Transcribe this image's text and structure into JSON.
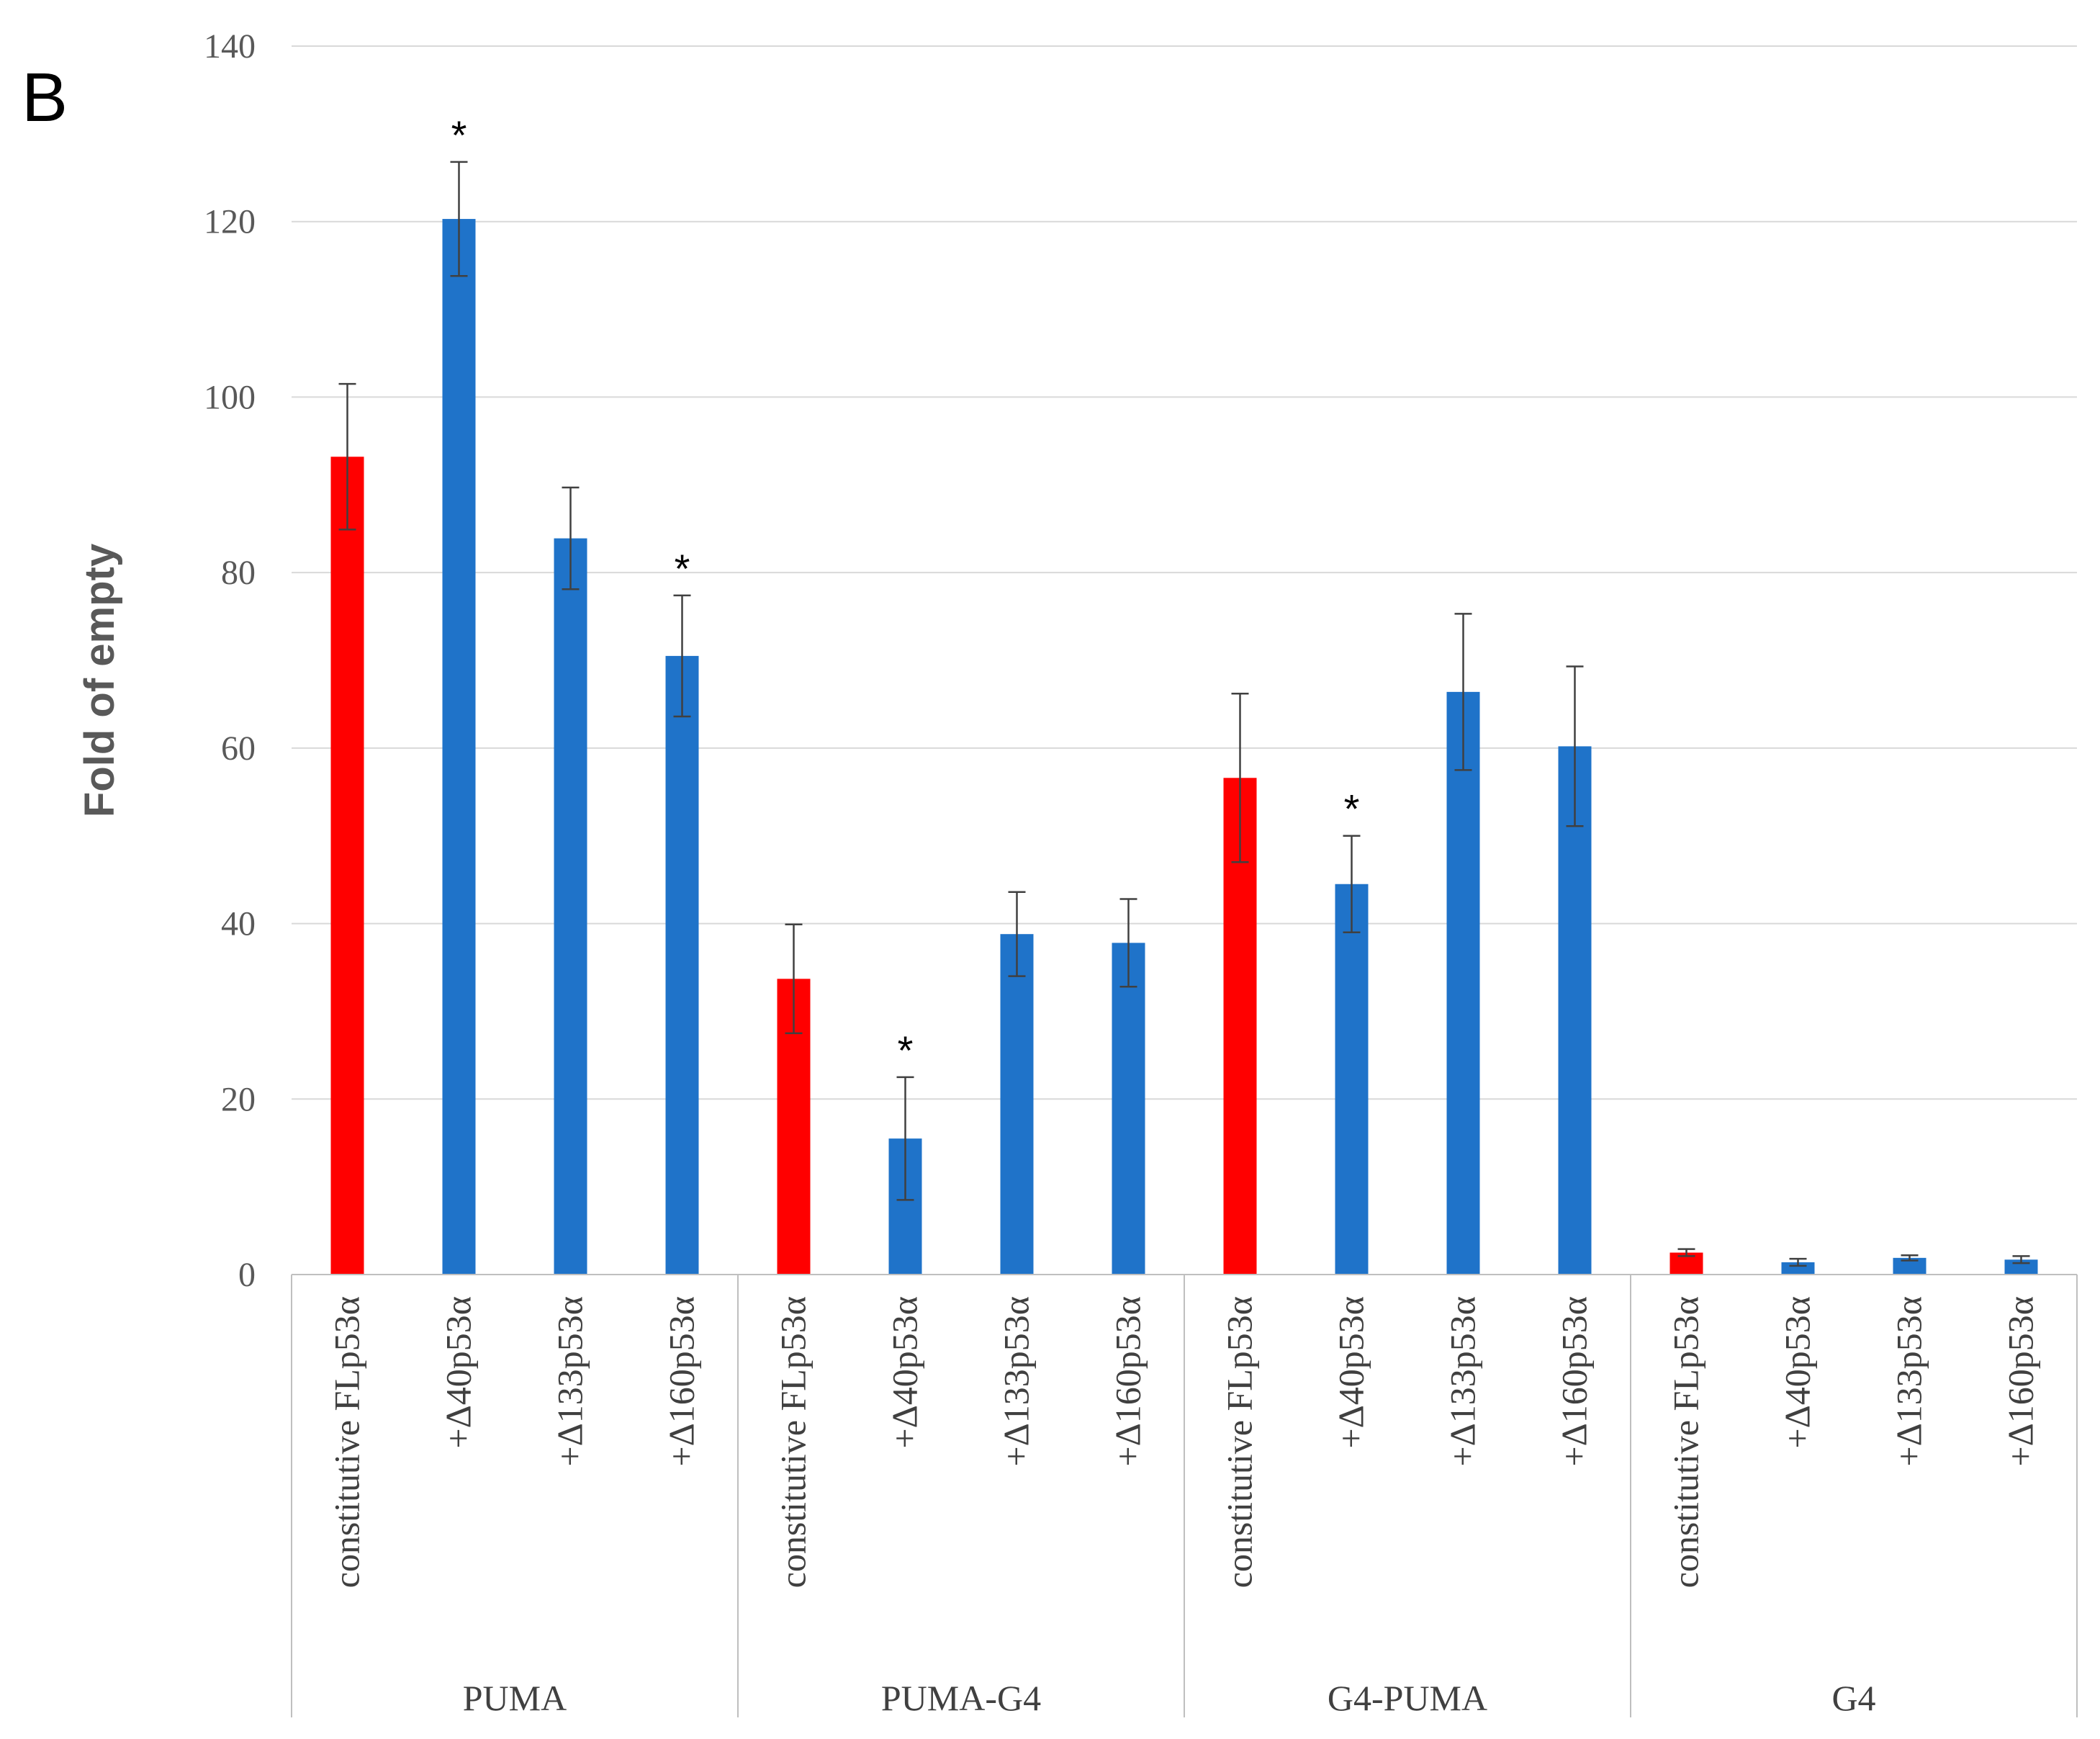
{
  "panel_label": "B",
  "chart_data": {
    "type": "bar",
    "title": "",
    "xlabel": "",
    "ylabel": "Fold of empty",
    "ylim": [
      0,
      140
    ],
    "yticks": [
      0,
      20,
      40,
      60,
      80,
      100,
      120,
      140
    ],
    "grid": true,
    "significance_marker": "*",
    "colors": {
      "constitutive": "#ff0000",
      "isoform": "#1f73c9"
    },
    "groups": [
      {
        "name": "PUMA",
        "bars": [
          {
            "label": "constitutive FLp53α",
            "value": 93.2,
            "error": 8.3,
            "kind": "constitutive",
            "significant": false
          },
          {
            "label": "+Δ40p53α",
            "value": 120.3,
            "error": 6.5,
            "kind": "isoform",
            "significant": true
          },
          {
            "label": "+Δ133p53α",
            "value": 83.9,
            "error": 5.8,
            "kind": "isoform",
            "significant": false
          },
          {
            "label": "+Δ160p53α",
            "value": 70.5,
            "error": 6.9,
            "kind": "isoform",
            "significant": true
          }
        ]
      },
      {
        "name": "PUMA-G4",
        "bars": [
          {
            "label": "constitutive FLp53α",
            "value": 33.7,
            "error": 6.2,
            "kind": "constitutive",
            "significant": false
          },
          {
            "label": "+Δ40p53α",
            "value": 15.5,
            "error": 7.0,
            "kind": "isoform",
            "significant": true
          },
          {
            "label": "+Δ133p53α",
            "value": 38.8,
            "error": 4.8,
            "kind": "isoform",
            "significant": false
          },
          {
            "label": "+Δ160p53α",
            "value": 37.8,
            "error": 5.0,
            "kind": "isoform",
            "significant": false
          }
        ]
      },
      {
        "name": "G4-PUMA",
        "bars": [
          {
            "label": "constitutive FLp53α",
            "value": 56.6,
            "error": 9.6,
            "kind": "constitutive",
            "significant": false
          },
          {
            "label": "+Δ40p53α",
            "value": 44.5,
            "error": 5.5,
            "kind": "isoform",
            "significant": true
          },
          {
            "label": "+Δ133p53α",
            "value": 66.4,
            "error": 8.9,
            "kind": "isoform",
            "significant": false
          },
          {
            "label": "+Δ160p53α",
            "value": 60.2,
            "error": 9.1,
            "kind": "isoform",
            "significant": false
          }
        ]
      },
      {
        "name": "G4",
        "bars": [
          {
            "label": "constitutive FLp53α",
            "value": 2.5,
            "error": 0.4,
            "kind": "constitutive",
            "significant": false
          },
          {
            "label": "+Δ40p53α",
            "value": 1.4,
            "error": 0.4,
            "kind": "isoform",
            "significant": false
          },
          {
            "label": "+Δ133p53α",
            "value": 1.9,
            "error": 0.3,
            "kind": "isoform",
            "significant": false
          },
          {
            "label": "+Δ160p53α",
            "value": 1.7,
            "error": 0.4,
            "kind": "isoform",
            "significant": false
          }
        ]
      }
    ]
  }
}
